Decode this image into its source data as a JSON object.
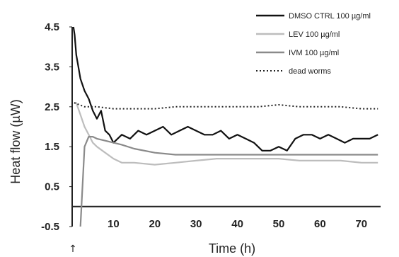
{
  "chart_data": {
    "type": "line",
    "xlabel": "Time (h)",
    "ylabel": "Heat flow (µW)",
    "xlim": [
      0,
      75
    ],
    "ylim": [
      -0.5,
      4.5
    ],
    "xticks": [
      "10",
      "20",
      "30",
      "40",
      "50",
      "60",
      "70"
    ],
    "yticks": [
      "-0.5",
      "0.5",
      "1.5",
      "2.5",
      "3.5",
      "4.5"
    ],
    "xtick_values": [
      10,
      20,
      30,
      40,
      50,
      60,
      70
    ],
    "ytick_values": [
      -0.5,
      0.5,
      1.5,
      2.5,
      3.5,
      4.5
    ],
    "grid": false,
    "legend_position": "top-right",
    "annotation": "↑",
    "series": [
      {
        "name": "DMSO CTRL 100 µg/ml",
        "color": "#111111",
        "style": "solid",
        "x": [
          0.3,
          0.6,
          1,
          1.5,
          2,
          3,
          4,
          5,
          6,
          7,
          8,
          9,
          10,
          12,
          14,
          16,
          18,
          20,
          22,
          24,
          26,
          28,
          30,
          32,
          34,
          36,
          38,
          40,
          42,
          44,
          46,
          48,
          50,
          52,
          54,
          56,
          58,
          60,
          62,
          64,
          66,
          68,
          70,
          72,
          74
        ],
        "y": [
          4.5,
          4.3,
          3.8,
          3.5,
          3.2,
          2.9,
          2.7,
          2.4,
          2.2,
          2.4,
          1.9,
          1.8,
          1.6,
          1.8,
          1.7,
          1.9,
          1.8,
          1.9,
          2.0,
          1.8,
          1.9,
          2.0,
          1.9,
          1.8,
          1.8,
          1.9,
          1.7,
          1.8,
          1.7,
          1.6,
          1.4,
          1.4,
          1.5,
          1.4,
          1.7,
          1.8,
          1.8,
          1.7,
          1.8,
          1.7,
          1.6,
          1.7,
          1.7,
          1.7,
          1.8
        ]
      },
      {
        "name": "LEV 100 µg/ml",
        "color": "#bdbdbd",
        "style": "solid",
        "x": [
          0.5,
          1,
          2,
          3,
          4,
          5,
          6,
          8,
          10,
          12,
          15,
          20,
          25,
          30,
          35,
          40,
          45,
          50,
          55,
          60,
          65,
          70,
          74
        ],
        "y": [
          2.6,
          2.6,
          2.3,
          2.0,
          1.8,
          1.6,
          1.5,
          1.35,
          1.2,
          1.1,
          1.1,
          1.05,
          1.1,
          1.15,
          1.2,
          1.2,
          1.2,
          1.2,
          1.15,
          1.15,
          1.15,
          1.1,
          1.1
        ]
      },
      {
        "name": "IVM 100 µg/ml",
        "color": "#8a8a8a",
        "style": "solid",
        "x": [
          2,
          2.5,
          3,
          4,
          5,
          6,
          8,
          10,
          12,
          15,
          20,
          25,
          30,
          35,
          40,
          45,
          50,
          55,
          60,
          65,
          70,
          74
        ],
        "y": [
          -0.5,
          0.5,
          1.5,
          1.75,
          1.75,
          1.7,
          1.65,
          1.6,
          1.55,
          1.45,
          1.35,
          1.3,
          1.3,
          1.3,
          1.3,
          1.3,
          1.3,
          1.3,
          1.3,
          1.3,
          1.3,
          1.3
        ]
      },
      {
        "name": "dead worms",
        "color": "#222222",
        "style": "dotted",
        "x": [
          0.5,
          3,
          6,
          10,
          15,
          20,
          25,
          30,
          35,
          40,
          45,
          50,
          55,
          60,
          65,
          70,
          74
        ],
        "y": [
          2.6,
          2.5,
          2.5,
          2.45,
          2.45,
          2.45,
          2.5,
          2.5,
          2.5,
          2.5,
          2.5,
          2.55,
          2.5,
          2.5,
          2.5,
          2.45,
          2.45
        ]
      }
    ]
  }
}
